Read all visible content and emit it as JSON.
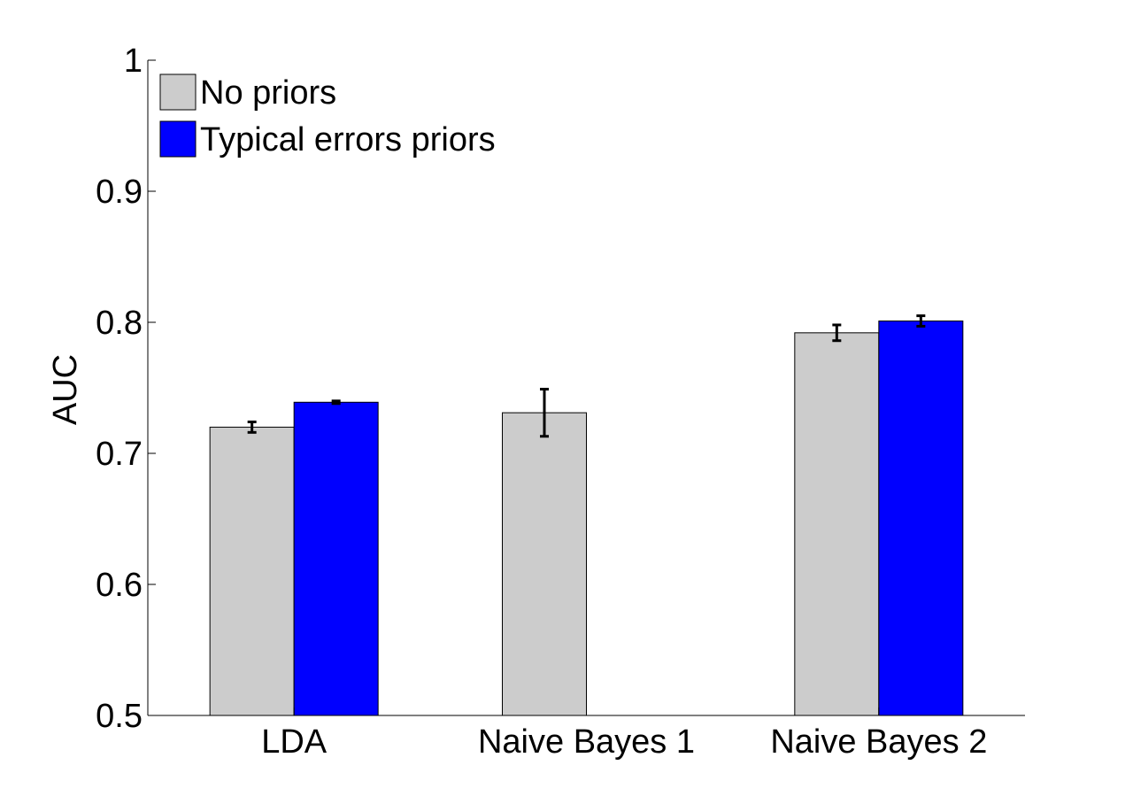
{
  "chart_data": {
    "type": "bar",
    "title": "",
    "xlabel": "",
    "ylabel": "AUC",
    "ylim": [
      0.5,
      1.0
    ],
    "yticks": [
      "0.5",
      "0.6",
      "0.7",
      "0.8",
      "0.9",
      "1"
    ],
    "categories": [
      "LDA",
      "Naive Bayes 1",
      "Naive Bayes 2"
    ],
    "series": [
      {
        "name": "No priors",
        "color": "#cccccc",
        "values": [
          0.72,
          0.731,
          0.792
        ],
        "errors": [
          0.004,
          0.018,
          0.006
        ]
      },
      {
        "name": "Typical errors priors",
        "color": "#0000ff",
        "values": [
          0.739,
          null,
          0.801
        ],
        "errors": [
          0.001,
          null,
          0.004
        ]
      }
    ],
    "legend": "top-left",
    "grid": false
  }
}
